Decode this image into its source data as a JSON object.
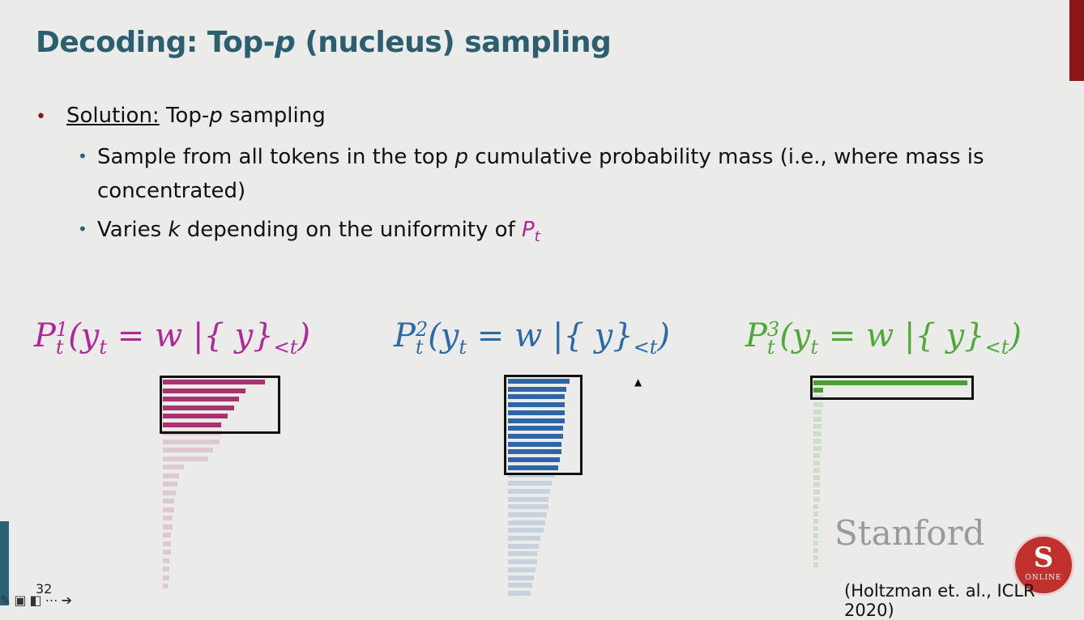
{
  "title": {
    "prefix": "Decoding: Top-",
    "italic": "p",
    "suffix": " (nucleus) sampling"
  },
  "bullets": {
    "main_label": "Solution:",
    "main_text_prefix": " Top-",
    "main_text_italic": "p",
    "main_text_suffix": " sampling",
    "sub1_prefix": "Sample from all tokens in the top ",
    "sub1_italic": "p",
    "sub1_suffix": " cumulative probability mass (i.e., where mass is",
    "sub1_cont": "concentrated)",
    "sub2_prefix": "Varies ",
    "sub2_italic": "k",
    "sub2_suffix": " depending on the uniformity of ",
    "sub2_P": "P",
    "sub2_t": "t"
  },
  "formulas": [
    {
      "P": "P",
      "sup": "1",
      "sub": "t",
      "body": "(y",
      "body_sub": "t",
      "rest": " = w |{ y}",
      "rest_sub": "<t",
      "close": ")"
    },
    {
      "P": "P",
      "sup": "2",
      "sub": "t",
      "body": "(y",
      "body_sub": "t",
      "rest": " = w |{ y}",
      "rest_sub": "<t",
      "close": ")"
    },
    {
      "P": "P",
      "sup": "3",
      "sub": "t",
      "body": "(y",
      "body_sub": "t",
      "rest": " = w |{ y}",
      "rest_sub": "<t",
      "close": ")"
    }
  ],
  "colors": {
    "dist1": "#a8336e",
    "dist2": "#2e64a8",
    "dist3": "#4aa032",
    "title": "#2b5f6f"
  },
  "stanford": "Stanford",
  "seal": {
    "letter": "S",
    "label": "ONLINE"
  },
  "citation": "(Holtzman et. al., ICLR 2020)",
  "page_number": "32"
}
